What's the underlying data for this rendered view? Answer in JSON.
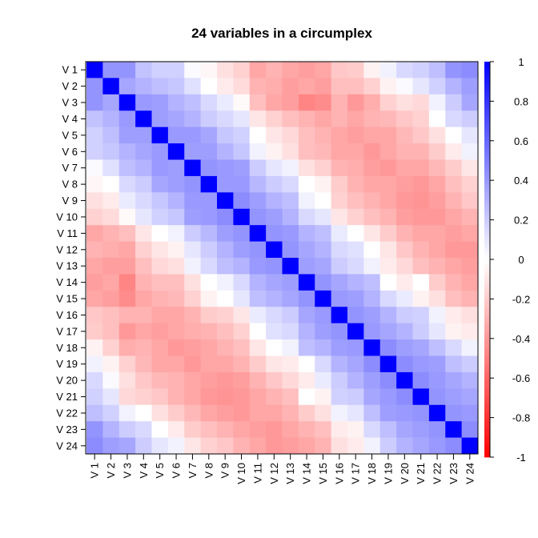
{
  "chart_data": {
    "type": "heatmap",
    "title": "24 variables in a circumplex",
    "variables": [
      "V 1",
      "V 2",
      "V 3",
      "V 4",
      "V 5",
      "V 6",
      "V 7",
      "V 8",
      "V 9",
      "V 10",
      "V 11",
      "V 12",
      "V 13",
      "V 14",
      "V 15",
      "V 16",
      "V 17",
      "V 18",
      "V 19",
      "V 20",
      "V 21",
      "V 22",
      "V 23",
      "V 24"
    ],
    "values_description_note": "",
    "matrix": [
      [
        1.0,
        0.42,
        0.42,
        0.24,
        0.18,
        0.18,
        0.02,
        -0.03,
        -0.12,
        -0.18,
        -0.35,
        -0.3,
        -0.35,
        -0.38,
        -0.35,
        -0.22,
        -0.2,
        -0.05,
        0.05,
        0.15,
        0.18,
        0.25,
        0.42,
        0.45
      ],
      [
        0.42,
        1.0,
        0.35,
        0.3,
        0.25,
        0.22,
        0.12,
        0.0,
        -0.08,
        -0.14,
        -0.3,
        -0.32,
        -0.38,
        -0.35,
        -0.38,
        -0.25,
        -0.25,
        -0.18,
        -0.05,
        0.02,
        0.1,
        0.18,
        0.3,
        0.38
      ],
      [
        0.42,
        0.35,
        1.0,
        0.4,
        0.38,
        0.3,
        0.25,
        0.15,
        0.08,
        -0.02,
        -0.25,
        -0.35,
        -0.38,
        -0.48,
        -0.45,
        -0.3,
        -0.4,
        -0.32,
        -0.18,
        -0.12,
        -0.15,
        0.05,
        0.2,
        0.35
      ],
      [
        0.24,
        0.3,
        0.4,
        1.0,
        0.38,
        0.35,
        0.3,
        0.2,
        0.15,
        0.1,
        -0.1,
        -0.18,
        -0.25,
        -0.3,
        -0.35,
        -0.3,
        -0.35,
        -0.3,
        -0.28,
        -0.22,
        -0.18,
        0.0,
        0.15,
        0.2
      ],
      [
        0.18,
        0.25,
        0.38,
        0.38,
        1.0,
        0.4,
        0.4,
        0.35,
        0.22,
        0.18,
        0.0,
        -0.1,
        -0.15,
        -0.25,
        -0.3,
        -0.35,
        -0.38,
        -0.35,
        -0.35,
        -0.28,
        -0.22,
        -0.12,
        0.0,
        0.1
      ],
      [
        0.18,
        0.22,
        0.3,
        0.35,
        0.4,
        1.0,
        0.38,
        0.38,
        0.3,
        0.22,
        0.05,
        -0.05,
        -0.12,
        -0.25,
        -0.28,
        -0.35,
        -0.35,
        -0.4,
        -0.35,
        -0.3,
        -0.3,
        -0.2,
        -0.08,
        0.05
      ],
      [
        0.02,
        0.12,
        0.25,
        0.3,
        0.4,
        0.38,
        1.0,
        0.42,
        0.4,
        0.38,
        0.2,
        0.1,
        0.05,
        -0.12,
        -0.18,
        -0.3,
        -0.32,
        -0.38,
        -0.4,
        -0.35,
        -0.35,
        -0.28,
        -0.2,
        -0.1
      ],
      [
        -0.03,
        0.0,
        0.15,
        0.2,
        0.35,
        0.38,
        0.42,
        1.0,
        0.4,
        0.4,
        0.28,
        0.2,
        0.15,
        0.0,
        -0.05,
        -0.2,
        -0.3,
        -0.35,
        -0.35,
        -0.38,
        -0.4,
        -0.35,
        -0.25,
        -0.18
      ],
      [
        -0.12,
        -0.08,
        0.08,
        0.15,
        0.22,
        0.3,
        0.4,
        0.4,
        1.0,
        0.45,
        0.38,
        0.3,
        0.25,
        0.05,
        0.0,
        -0.18,
        -0.25,
        -0.3,
        -0.35,
        -0.4,
        -0.42,
        -0.38,
        -0.3,
        -0.22
      ],
      [
        -0.18,
        -0.14,
        -0.02,
        0.1,
        0.18,
        0.22,
        0.38,
        0.4,
        0.45,
        1.0,
        0.42,
        0.38,
        0.3,
        0.15,
        0.1,
        -0.1,
        -0.18,
        -0.25,
        -0.3,
        -0.38,
        -0.4,
        -0.4,
        -0.35,
        -0.3
      ],
      [
        -0.35,
        -0.3,
        -0.25,
        -0.1,
        0.0,
        0.05,
        0.2,
        0.28,
        0.38,
        0.42,
        1.0,
        0.42,
        0.4,
        0.3,
        0.25,
        0.08,
        0.0,
        -0.1,
        -0.2,
        -0.3,
        -0.35,
        -0.35,
        -0.38,
        -0.35
      ],
      [
        -0.3,
        -0.32,
        -0.35,
        -0.18,
        -0.1,
        -0.05,
        0.1,
        0.2,
        0.3,
        0.38,
        0.42,
        1.0,
        0.42,
        0.35,
        0.3,
        0.15,
        0.12,
        0.0,
        -0.1,
        -0.22,
        -0.3,
        -0.35,
        -0.4,
        -0.4
      ],
      [
        -0.35,
        -0.38,
        -0.38,
        -0.25,
        -0.15,
        -0.12,
        0.05,
        0.15,
        0.25,
        0.3,
        0.4,
        0.42,
        1.0,
        0.38,
        0.35,
        0.2,
        0.15,
        0.05,
        -0.08,
        -0.15,
        -0.25,
        -0.3,
        -0.35,
        -0.38
      ],
      [
        -0.38,
        -0.35,
        -0.48,
        -0.3,
        -0.25,
        -0.25,
        -0.12,
        0.0,
        0.05,
        0.15,
        0.3,
        0.35,
        0.38,
        1.0,
        0.42,
        0.35,
        0.3,
        0.25,
        0.0,
        -0.08,
        0.0,
        -0.2,
        -0.3,
        -0.35
      ],
      [
        -0.35,
        -0.38,
        -0.45,
        -0.35,
        -0.3,
        -0.28,
        -0.18,
        -0.05,
        0.0,
        0.1,
        0.25,
        0.3,
        0.35,
        0.42,
        1.0,
        0.4,
        0.38,
        0.3,
        0.15,
        0.08,
        -0.05,
        -0.12,
        -0.25,
        -0.3
      ],
      [
        -0.22,
        -0.25,
        -0.3,
        -0.3,
        -0.35,
        -0.35,
        -0.3,
        -0.2,
        -0.18,
        -0.1,
        0.08,
        0.15,
        0.2,
        0.35,
        0.4,
        1.0,
        0.42,
        0.38,
        0.3,
        0.2,
        0.18,
        0.05,
        -0.08,
        -0.12
      ],
      [
        -0.2,
        -0.25,
        -0.4,
        -0.35,
        -0.38,
        -0.35,
        -0.32,
        -0.3,
        -0.25,
        -0.18,
        0.0,
        0.12,
        0.15,
        0.3,
        0.38,
        0.42,
        1.0,
        0.4,
        0.35,
        0.3,
        0.2,
        0.1,
        -0.05,
        -0.08
      ],
      [
        -0.05,
        -0.18,
        -0.32,
        -0.3,
        -0.35,
        -0.4,
        -0.38,
        -0.35,
        -0.3,
        -0.25,
        -0.1,
        0.0,
        0.05,
        0.25,
        0.3,
        0.38,
        0.4,
        1.0,
        0.45,
        0.38,
        0.35,
        0.25,
        0.15,
        0.05
      ],
      [
        0.05,
        -0.05,
        -0.18,
        -0.28,
        -0.35,
        -0.35,
        -0.4,
        -0.35,
        -0.35,
        -0.3,
        -0.2,
        -0.1,
        -0.08,
        0.0,
        0.15,
        0.3,
        0.35,
        0.45,
        1.0,
        0.45,
        0.4,
        0.38,
        0.25,
        0.2
      ],
      [
        0.15,
        0.02,
        -0.12,
        -0.22,
        -0.28,
        -0.3,
        -0.35,
        -0.38,
        -0.4,
        -0.38,
        -0.3,
        -0.22,
        -0.15,
        -0.08,
        0.08,
        0.2,
        0.3,
        0.38,
        0.45,
        1.0,
        0.45,
        0.4,
        0.35,
        0.3
      ],
      [
        0.18,
        0.1,
        -0.15,
        -0.18,
        -0.22,
        -0.3,
        -0.35,
        -0.4,
        -0.42,
        -0.4,
        -0.35,
        -0.3,
        -0.25,
        0.0,
        -0.05,
        0.18,
        0.2,
        0.35,
        0.4,
        0.45,
        1.0,
        0.42,
        0.38,
        0.35
      ],
      [
        0.25,
        0.18,
        0.05,
        0.0,
        -0.12,
        -0.2,
        -0.28,
        -0.35,
        -0.38,
        -0.4,
        -0.35,
        -0.35,
        -0.3,
        -0.2,
        -0.12,
        0.05,
        0.1,
        0.25,
        0.38,
        0.4,
        0.42,
        1.0,
        0.42,
        0.4
      ],
      [
        0.42,
        0.3,
        0.2,
        0.15,
        0.0,
        -0.08,
        -0.2,
        -0.25,
        -0.3,
        -0.35,
        -0.38,
        -0.4,
        -0.35,
        -0.3,
        -0.25,
        -0.08,
        -0.05,
        0.15,
        0.25,
        0.35,
        0.38,
        0.42,
        1.0,
        0.45
      ],
      [
        0.45,
        0.38,
        0.35,
        0.2,
        0.1,
        0.05,
        -0.1,
        -0.18,
        -0.22,
        -0.3,
        -0.35,
        -0.4,
        -0.38,
        -0.35,
        -0.3,
        -0.12,
        -0.08,
        0.05,
        0.2,
        0.3,
        0.35,
        0.4,
        0.45,
        1.0
      ]
    ],
    "colorbar": {
      "range": [
        -1,
        1
      ],
      "ticks": [
        "1",
        "0.8",
        "0.6",
        "0.4",
        "0.2",
        "0",
        "-0.2",
        "-0.4",
        "-0.6",
        "-0.8",
        "-1"
      ],
      "tick_values": [
        1,
        0.8,
        0.6,
        0.4,
        0.2,
        0,
        -0.2,
        -0.4,
        -0.6,
        -0.8,
        -1
      ],
      "color_low": "#ff0000",
      "color_mid": "#ffffff",
      "color_high": "#0000ff"
    },
    "grid": false,
    "legend_placement": "right"
  }
}
